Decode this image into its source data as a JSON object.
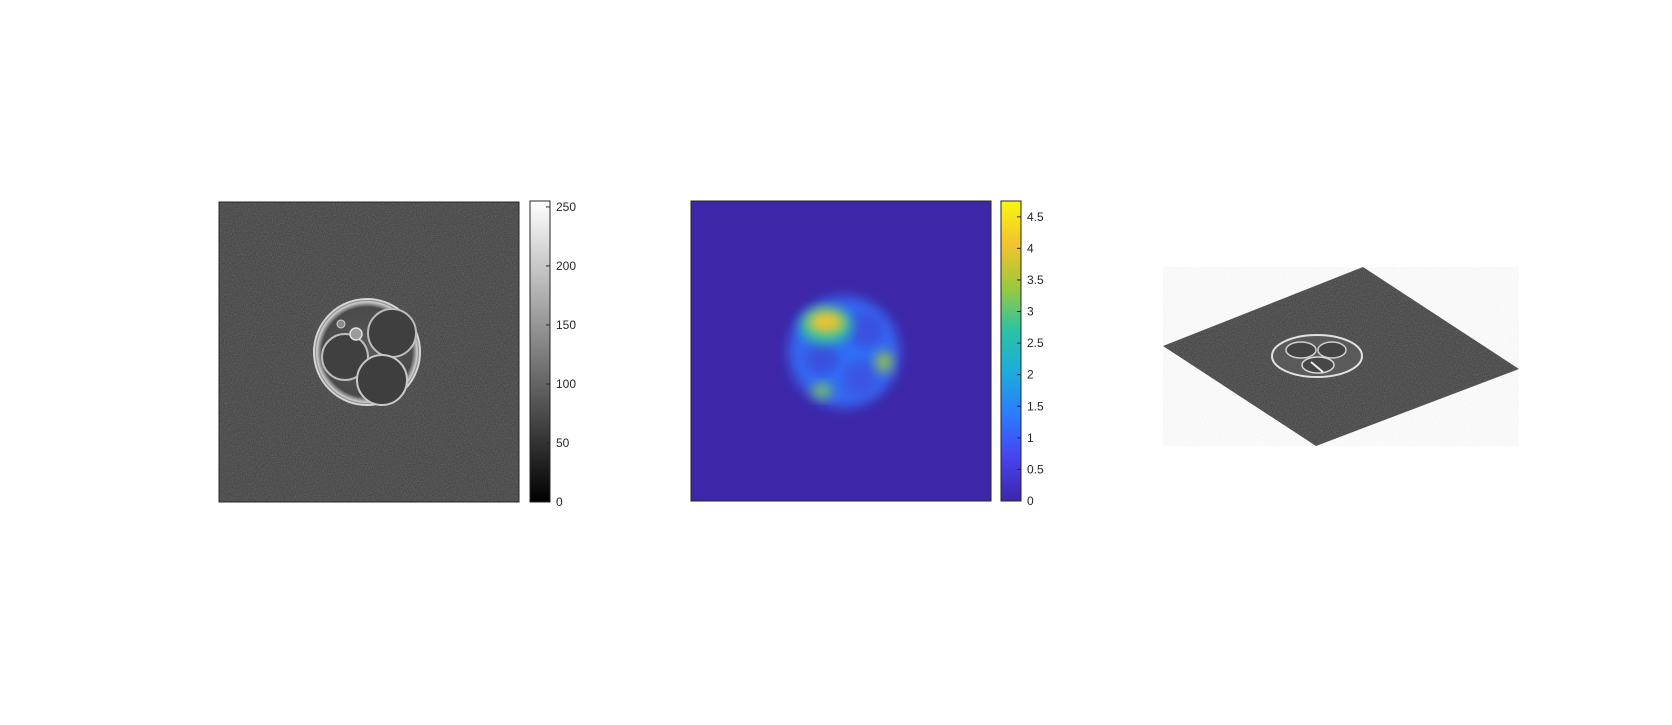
{
  "figure": {
    "panel_count": 3
  },
  "chart_data": [
    {
      "type": "heatmap",
      "title": "",
      "description_role": "grayscale microscopy image of embryo",
      "colormap": "gray",
      "colorbar": {
        "clim": [
          0,
          255
        ],
        "ticks": [
          0,
          50,
          100,
          150,
          200,
          250
        ],
        "tick_labels": [
          "0",
          "50",
          "100",
          "150",
          "200",
          "250"
        ]
      },
      "colors": {
        "background": "#3b3b3b",
        "cell": "#8a8a8a",
        "rim": "#d8d8d8",
        "dark": "#2a2a2a"
      }
    },
    {
      "type": "heatmap",
      "title": "",
      "colormap": "parula",
      "colorbar": {
        "clim": [
          0,
          4.75
        ],
        "ticks": [
          0,
          0.5,
          1,
          1.5,
          2,
          2.5,
          3,
          3.5,
          4,
          4.5
        ],
        "tick_labels": [
          "0",
          "0.5",
          "1",
          "1.5",
          "2",
          "2.5",
          "3",
          "3.5",
          "4",
          "4.5"
        ]
      },
      "colormap_stops": [
        "#3e26a8",
        "#4743f0",
        "#2c7bfe",
        "#1cacdc",
        "#2cc3a4",
        "#9dc93d",
        "#f3c32f",
        "#f9f60f"
      ],
      "hotspots": [
        {
          "label": "upper-left blob",
          "value": 4.3
        },
        {
          "label": "right blob",
          "value": 3.3
        },
        {
          "label": "lower-left blob",
          "value": 3.0
        },
        {
          "label": "cell body",
          "value": 1.2
        }
      ]
    },
    {
      "type": "surface",
      "title": "",
      "description_role": "3D surface view of grayscale image",
      "colors": {
        "surface": "#3c3c3c",
        "cell": "#8c8c8c",
        "rim": "#e0e0e0"
      }
    }
  ]
}
